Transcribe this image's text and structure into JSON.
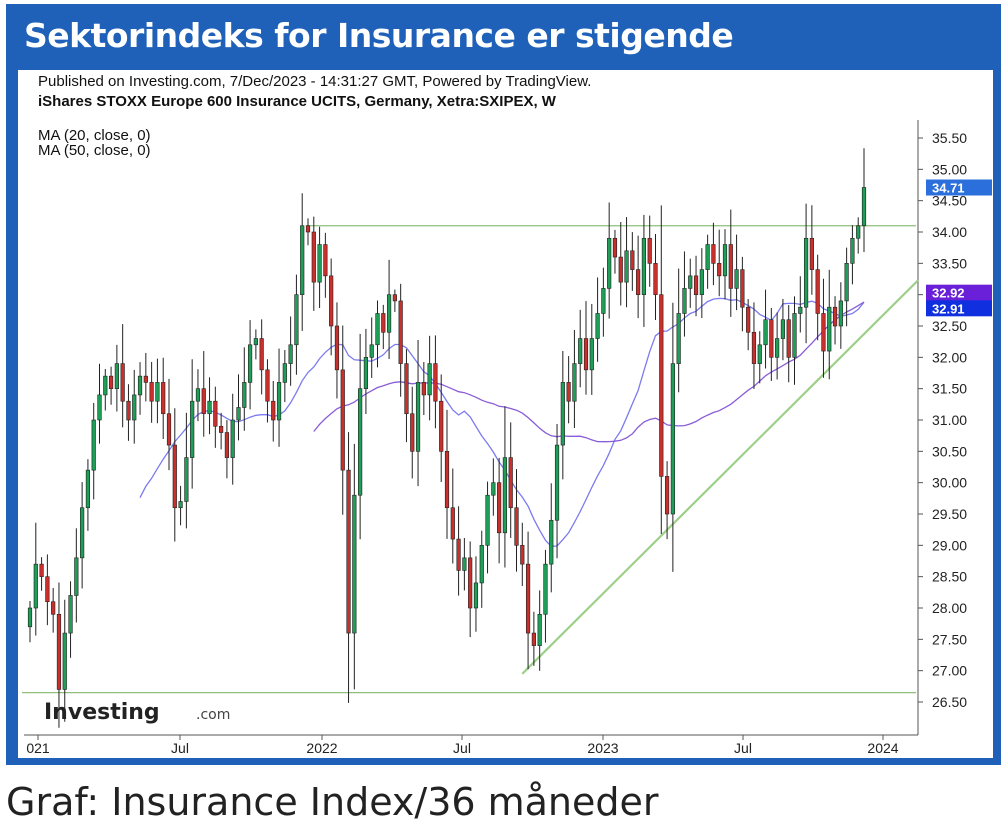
{
  "banner": {
    "title": "Sektorindeks for Insurance er stigende"
  },
  "header": {
    "published": "Published on Investing.com, 7/Dec/2023 - 14:31:27 GMT, Powered by TradingView.",
    "instrument": "iShares STOXX Europe 600 Insurance UCITS, Germany, Xetra:SXIPEX, W"
  },
  "indicators": [
    "MA (20, close, 0)",
    "MA (50, close, 0)"
  ],
  "watermark": {
    "brand": "Investing",
    "suffix": ".com"
  },
  "caption": "Graf: Insurance Index/36 måneder",
  "chart_data": {
    "type": "line",
    "y_axis": {
      "side": "right",
      "ylim": [
        26.2,
        35.7
      ],
      "ticks": [
        35.5,
        35.0,
        34.5,
        34.0,
        33.5,
        33.0,
        32.5,
        32.0,
        31.5,
        31.0,
        30.5,
        30.0,
        29.5,
        29.0,
        28.5,
        28.0,
        27.5,
        27.0,
        26.5
      ],
      "tick_labels": [
        "35.50",
        "35.00",
        "34.50",
        "34.00",
        "33.50",
        "33.00",
        "32.50",
        "32.00",
        "31.50",
        "31.00",
        "30.50",
        "30.00",
        "29.50",
        "29.00",
        "28.50",
        "28.00",
        "27.50",
        "27.00",
        "26.50"
      ]
    },
    "x_axis": {
      "tick_labels": [
        "021",
        "Jul",
        "2022",
        "Jul",
        "2023",
        "Jul",
        "2024"
      ]
    },
    "price_tags": [
      {
        "label": "34.71",
        "value": 34.71,
        "color": "#2a6fdb"
      },
      {
        "label": "32.92",
        "value": 32.92,
        "color": "#6a1fd8"
      },
      {
        "label": "32.91",
        "value": 32.91,
        "color": "#1030e0"
      }
    ],
    "series": [
      {
        "type": "candlestick",
        "up_color": "#1e9e57",
        "down_color": "#c9302c",
        "close": [
          28.0,
          28.7,
          28.5,
          28.1,
          27.9,
          26.7,
          27.6,
          28.2,
          28.8,
          29.6,
          30.2,
          31.0,
          31.4,
          31.7,
          31.5,
          31.9,
          31.3,
          31.0,
          31.4,
          31.7,
          31.6,
          31.3,
          31.6,
          31.1,
          30.6,
          29.6,
          29.7,
          30.4,
          31.3,
          31.5,
          31.1,
          31.3,
          30.9,
          30.8,
          30.4,
          31.0,
          31.2,
          31.6,
          32.2,
          32.3,
          31.8,
          31.3,
          31.0,
          31.6,
          31.9,
          32.2,
          33.0,
          34.1,
          34.0,
          33.2,
          33.8,
          33.3,
          32.5,
          31.8,
          30.2,
          27.6,
          29.8,
          31.5,
          32.0,
          32.2,
          32.7,
          32.4,
          33.0,
          32.9,
          31.9,
          31.1,
          30.5,
          31.6,
          31.4,
          31.9,
          31.3,
          30.5,
          29.6,
          29.1,
          28.6,
          28.8,
          28.0,
          28.4,
          29.0,
          29.8,
          30.0,
          29.2,
          30.4,
          29.6,
          29.0,
          28.7,
          27.6,
          27.4,
          27.9,
          28.7,
          29.4,
          30.6,
          31.6,
          31.3,
          31.9,
          32.3,
          31.8,
          32.3,
          32.7,
          33.1,
          33.9,
          33.6,
          33.2,
          33.7,
          33.4,
          33.0,
          33.9,
          33.5,
          33.0,
          30.1,
          29.5,
          31.9,
          32.7,
          33.1,
          33.3,
          33.0,
          33.4,
          33.8,
          33.5,
          33.3,
          33.8,
          33.1,
          33.4,
          32.8,
          32.4,
          31.9,
          32.2,
          32.6,
          32.0,
          32.3,
          32.6,
          32.0,
          32.7,
          32.8,
          33.9,
          33.4,
          32.7,
          32.1,
          32.8,
          32.5,
          32.9,
          33.5,
          33.9,
          34.1,
          34.71
        ],
        "ma20_available_from_index": 19,
        "ma50_available_from_index": 49
      },
      {
        "name": "MA (20, close, 0)",
        "type": "line",
        "color": "#7b7bf0"
      },
      {
        "name": "MA (50, close, 0)",
        "type": "line",
        "color": "#8a5cd8"
      }
    ],
    "levels": [
      {
        "type": "horizontal",
        "value": 34.1,
        "from_index": 49,
        "color": "#8fbf7a"
      },
      {
        "type": "horizontal",
        "value": 26.65,
        "from_index": 0,
        "color": "#8fbf7a"
      },
      {
        "type": "trendline",
        "from": {
          "index": 85,
          "value": 26.95
        },
        "to": {
          "index": 150,
          "value": 33.1
        },
        "color": "#9ccf88"
      }
    ],
    "grid": false
  }
}
